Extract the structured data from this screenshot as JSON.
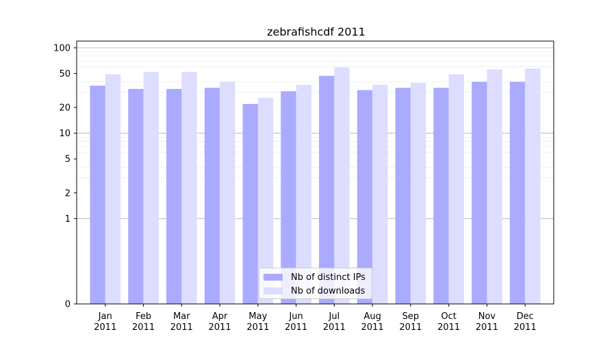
{
  "chart_data": {
    "type": "bar",
    "title": "zebrafishcdf 2011",
    "xlabel": "",
    "ylabel": "",
    "yscale": "symlog",
    "ylim": [
      0,
      120
    ],
    "yticks": [
      0,
      1,
      2,
      5,
      10,
      20,
      50,
      100
    ],
    "grid": true,
    "legend_position": "bottom-center",
    "categories": [
      "Jan\n2011",
      "Feb\n2011",
      "Mar\n2011",
      "Apr\n2011",
      "May\n2011",
      "Jun\n2011",
      "Jul\n2011",
      "Aug\n2011",
      "Sep\n2011",
      "Oct\n2011",
      "Nov\n2011",
      "Dec\n2011"
    ],
    "series": [
      {
        "name": "Nb of distinct IPs",
        "color": "#aaaaff",
        "values": [
          36,
          33,
          33,
          34,
          22,
          31,
          47,
          32,
          34,
          34,
          40,
          40
        ]
      },
      {
        "name": "Nb of downloads",
        "color": "#ddddff",
        "values": [
          49,
          52,
          52,
          40,
          26,
          37,
          59,
          37,
          39,
          49,
          56,
          57
        ]
      }
    ]
  }
}
